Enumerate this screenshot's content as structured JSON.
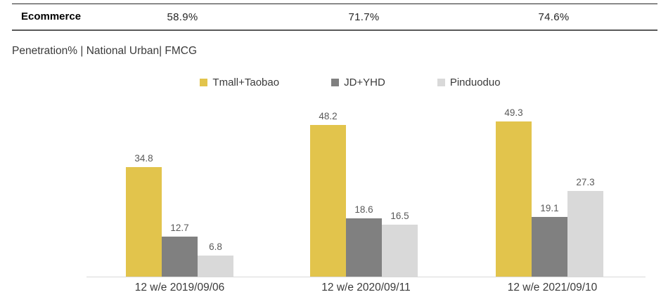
{
  "summary": {
    "row_label": "Ecommerce",
    "values": [
      "58.9%",
      "71.7%",
      "74.6%"
    ]
  },
  "chart_title": "Penetration% | National Urban| FMCG",
  "chart_data": {
    "type": "bar",
    "title": "Penetration% | National Urban| FMCG",
    "categories": [
      "12 w/e 2019/09/06",
      "12 w/e 2020/09/11",
      "12 w/e 2021/09/10"
    ],
    "series": [
      {
        "name": "Tmall+Taobao",
        "color": "#E2C44C",
        "values": [
          34.8,
          48.2,
          49.3
        ]
      },
      {
        "name": "JD+YHD",
        "color": "#808080",
        "values": [
          12.7,
          18.6,
          19.1
        ]
      },
      {
        "name": "Pinduoduo",
        "color": "#D9D9D9",
        "values": [
          6.8,
          16.5,
          27.3
        ]
      }
    ],
    "ylabel": "",
    "xlabel": "",
    "ylim": [
      0,
      55
    ],
    "grid": false,
    "value_labels": true,
    "legend_position": "top-center",
    "axis_line_color": "#D9D9D9",
    "value_label_color": "#595959"
  }
}
